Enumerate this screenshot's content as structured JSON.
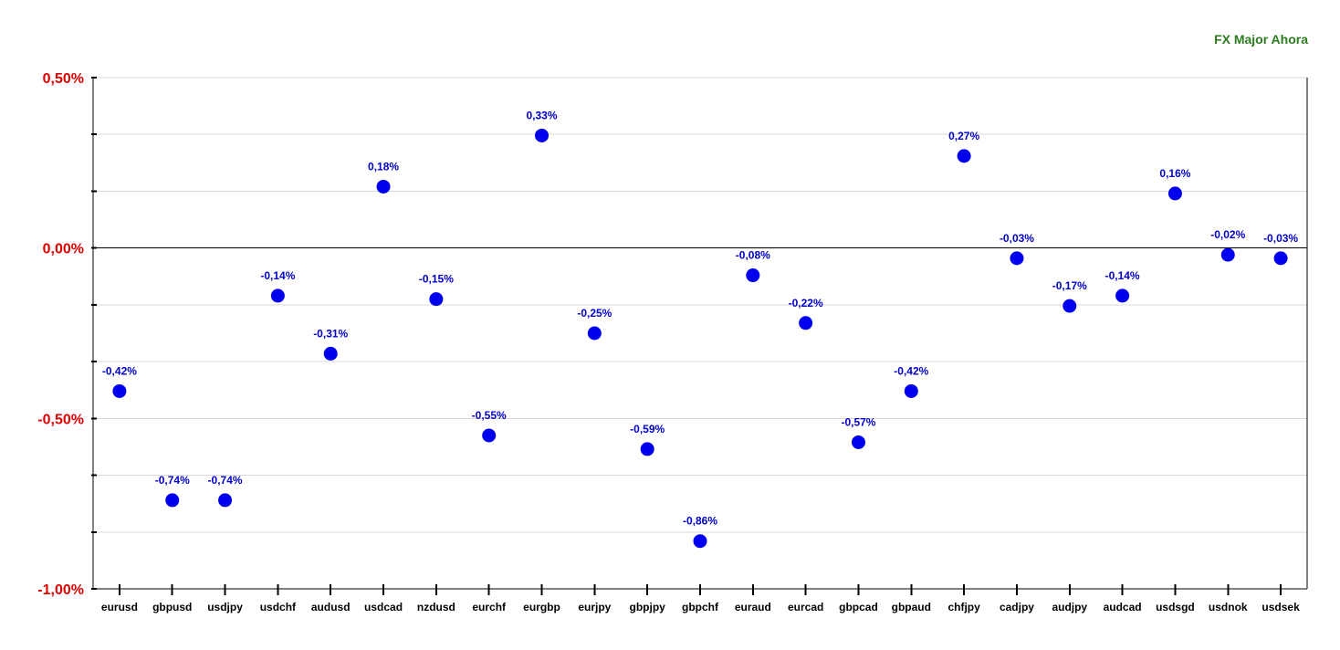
{
  "chart_data": {
    "type": "scatter",
    "title": "FX Major Ahora",
    "xlabel": "",
    "ylabel": "",
    "ylim": [
      -1.0,
      0.5
    ],
    "yticks": [
      {
        "value": 0.5,
        "label": "0,50%"
      },
      {
        "value": 0.0,
        "label": "0,00%"
      },
      {
        "value": -0.5,
        "label": "-0,50%"
      },
      {
        "value": -1.0,
        "label": "-1,00%"
      }
    ],
    "grid": true,
    "categories": [
      "eurusd",
      "gbpusd",
      "usdjpy",
      "usdchf",
      "audusd",
      "usdcad",
      "nzdusd",
      "eurchf",
      "eurgbp",
      "eurjpy",
      "gbpjpy",
      "gbpchf",
      "euraud",
      "eurcad",
      "gbpcad",
      "gbpaud",
      "chfjpy",
      "cadjpy",
      "audjpy",
      "audcad",
      "usdsgd",
      "usdnok",
      "usdsek"
    ],
    "values": [
      -0.42,
      -0.74,
      -0.74,
      -0.14,
      -0.31,
      0.18,
      -0.15,
      -0.55,
      0.33,
      -0.25,
      -0.59,
      -0.86,
      -0.08,
      -0.22,
      -0.57,
      -0.42,
      0.27,
      -0.03,
      -0.17,
      -0.14,
      0.16,
      -0.02,
      -0.03
    ],
    "data_labels": [
      "-0,42%",
      "-0,74%",
      "-0,74%",
      "-0,14%",
      "-0,31%",
      "0,18%",
      "-0,15%",
      "-0,55%",
      "0,33%",
      "-0,25%",
      "-0,59%",
      "-0,86%",
      "-0,08%",
      "-0,22%",
      "-0,57%",
      "-0,42%",
      "0,27%",
      "-0,03%",
      "-0,17%",
      "-0,14%",
      "0,16%",
      "-0,02%",
      "-0,03%"
    ],
    "colors": {
      "point": "#0000ee",
      "label": "#0000cc",
      "ytick": "#e00000",
      "title": "#2d7a1f",
      "grid": "#d8d8d8",
      "zero_line": "#000000"
    }
  }
}
